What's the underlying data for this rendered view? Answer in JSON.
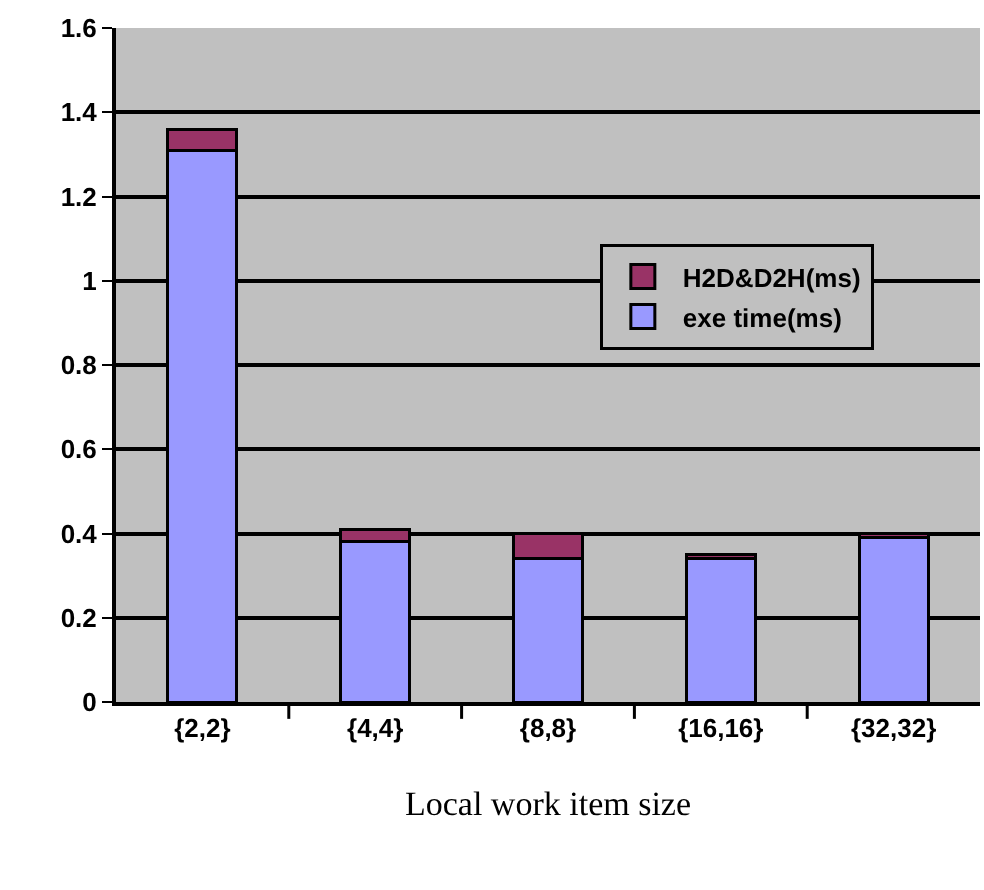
{
  "chart_data": {
    "type": "bar",
    "stacked": true,
    "xlabel": "Local work item size",
    "categories": [
      "{2,2}",
      "{4,4}",
      "{8,8}",
      "{16,16}",
      "{32,32}"
    ],
    "series": [
      {
        "name": "exe time(ms)",
        "color": "#9999ff",
        "values": [
          1.31,
          0.38,
          0.34,
          0.34,
          0.39
        ]
      },
      {
        "name": "H2D&D2H(ms)",
        "color": "#993366",
        "values": [
          0.05,
          0.03,
          0.06,
          0.01,
          0.01
        ]
      }
    ],
    "ylim": [
      0,
      1.6
    ],
    "yticks": [
      0,
      0.2,
      0.4,
      0.6,
      0.8,
      1,
      1.2,
      1.4,
      1.6
    ],
    "grid": "y",
    "legend": "right"
  }
}
